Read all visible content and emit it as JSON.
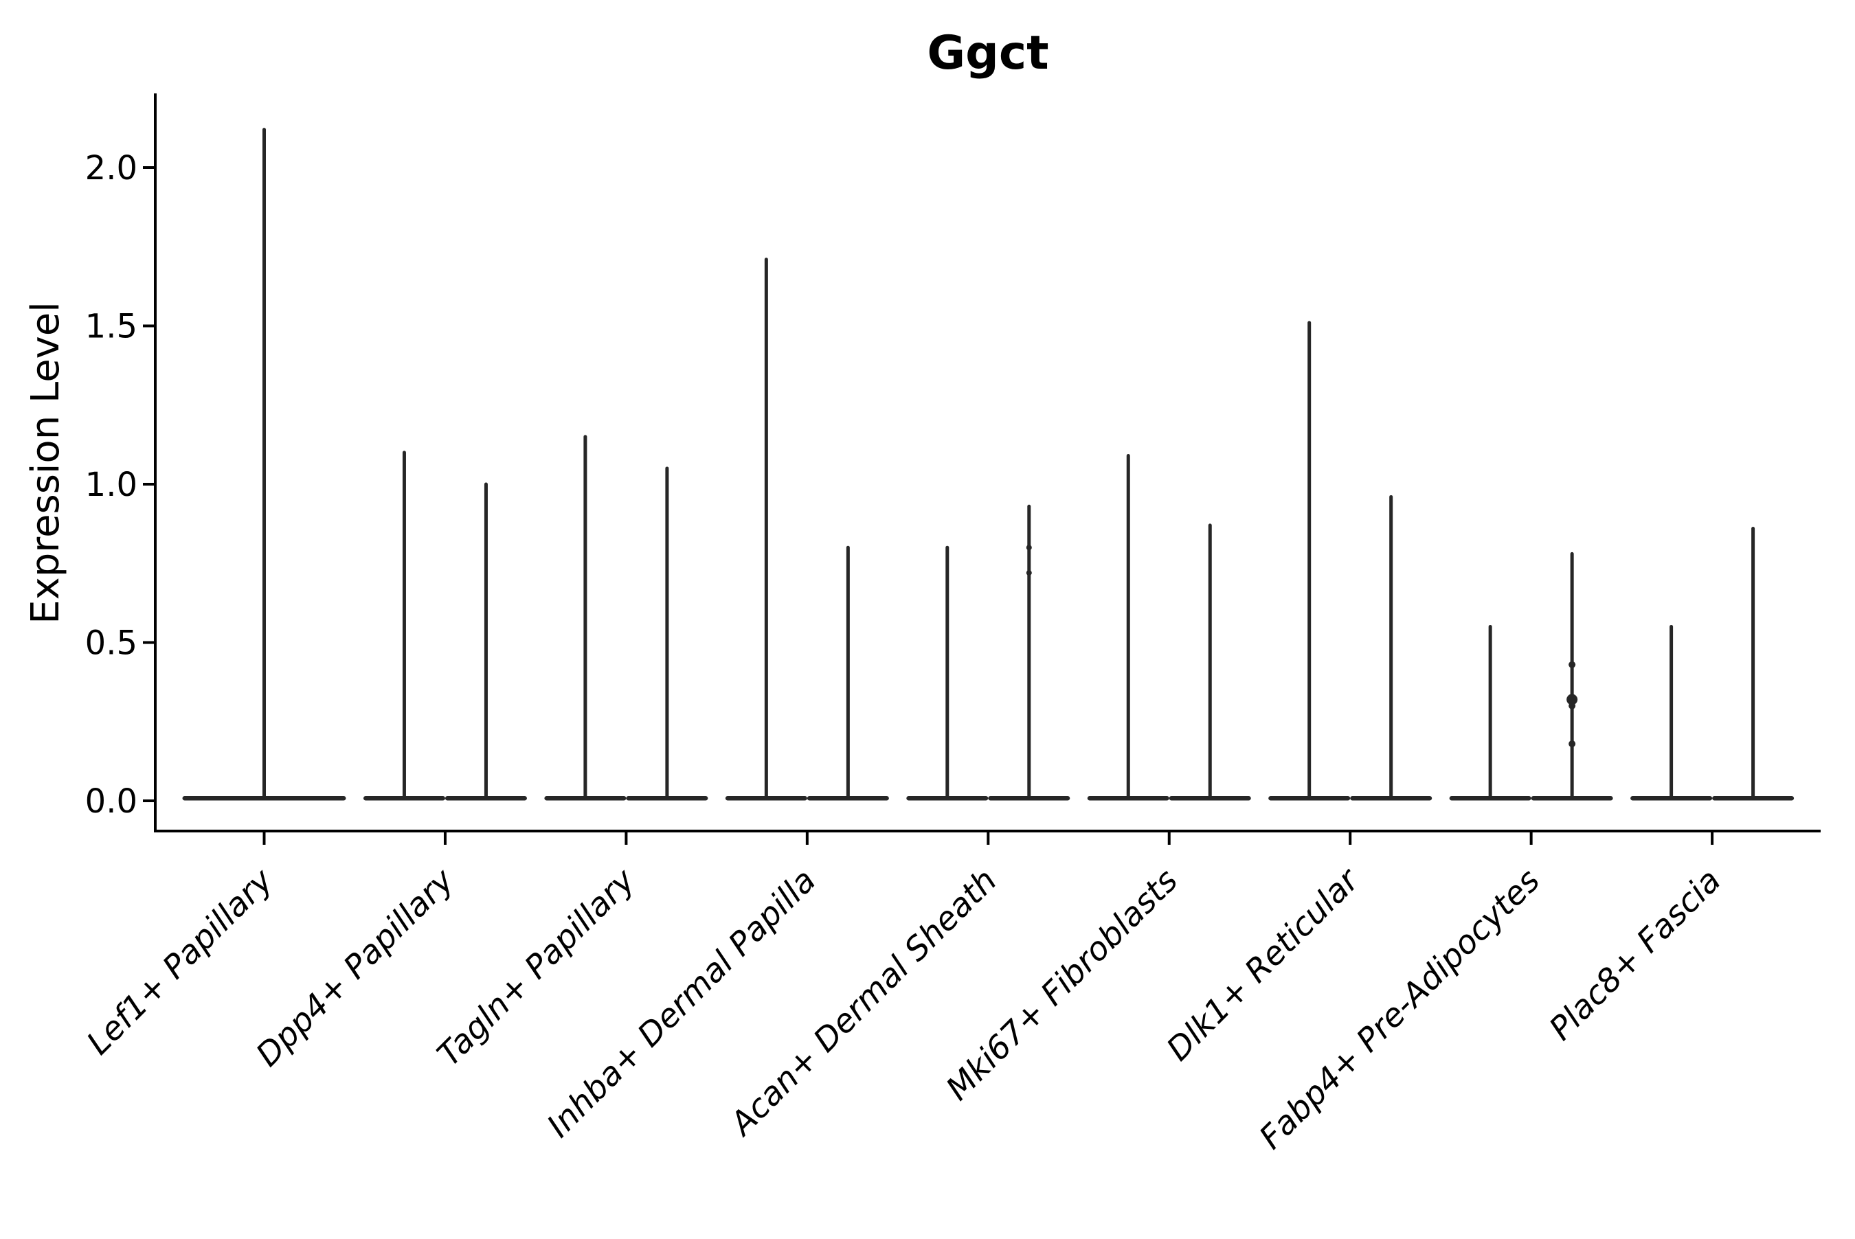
{
  "title": "Ggct",
  "axes": {
    "ylabel": "Expression Level",
    "ytick_labels": [
      "0.0",
      "0.5",
      "1.0",
      "1.5",
      "2.0"
    ],
    "ytick_values": [
      0.0,
      0.5,
      1.0,
      1.5,
      2.0
    ]
  },
  "chart_data": {
    "type": "violin",
    "title": "Ggct",
    "xlabel": "",
    "ylabel": "Expression Level",
    "ylim": [
      -0.09,
      2.23
    ],
    "yticks": [
      0.0,
      0.5,
      1.0,
      1.5,
      2.0
    ],
    "ytick_labels": [
      "0.0",
      "0.5",
      "1.0",
      "1.5",
      "2.0"
    ],
    "grid": false,
    "legend": "none",
    "ink_color": "#262626",
    "axis_color": "#000000",
    "categories": [
      "Lef1+ Papillary",
      "Dpp4+ Papillary",
      "Tagln+ Papillary",
      "Inhba+ Dermal Papilla",
      "Acan+ Dermal Sheath",
      "Mki67+ Fibroblasts",
      "Dlk1+ Reticular",
      "Fabp4+ Pre-Adipocytes",
      "Plac8+ Fascia"
    ],
    "series": [
      {
        "category": "Lef1+ Papillary",
        "violins": [
          {
            "baseline": 0.0,
            "max": 2.12,
            "points": []
          }
        ]
      },
      {
        "category": "Dpp4+ Papillary",
        "violins": [
          {
            "baseline": 0.0,
            "max": 1.1,
            "points": []
          },
          {
            "baseline": 0.0,
            "max": 1.0,
            "points": []
          }
        ]
      },
      {
        "category": "Tagln+ Papillary",
        "violins": [
          {
            "baseline": 0.0,
            "max": 1.15,
            "points": []
          },
          {
            "baseline": 0.0,
            "max": 1.05,
            "points": []
          }
        ]
      },
      {
        "category": "Inhba+ Dermal Papilla",
        "violins": [
          {
            "baseline": 0.0,
            "max": 1.71,
            "points": []
          },
          {
            "baseline": 0.0,
            "max": 0.8,
            "points": []
          }
        ]
      },
      {
        "category": "Acan+ Dermal Sheath",
        "violins": [
          {
            "baseline": 0.0,
            "max": 0.8,
            "points": []
          },
          {
            "baseline": 0.0,
            "max": 0.93,
            "points": [
              {
                "v": 0.8,
                "r": 4
              },
              {
                "v": 0.72,
                "r": 4
              }
            ]
          }
        ]
      },
      {
        "category": "Mki67+ Fibroblasts",
        "violins": [
          {
            "baseline": 0.0,
            "max": 1.09,
            "points": []
          },
          {
            "baseline": 0.0,
            "max": 0.87,
            "points": []
          }
        ]
      },
      {
        "category": "Dlk1+ Reticular",
        "violins": [
          {
            "baseline": 0.0,
            "max": 1.51,
            "points": []
          },
          {
            "baseline": 0.0,
            "max": 0.96,
            "points": []
          }
        ]
      },
      {
        "category": "Fabp4+ Pre-Adipocytes",
        "violins": [
          {
            "baseline": 0.0,
            "max": 0.55,
            "points": []
          },
          {
            "baseline": 0.0,
            "max": 0.78,
            "points": [
              {
                "v": 0.43,
                "r": 5
              },
              {
                "v": 0.32,
                "r": 8
              },
              {
                "v": 0.3,
                "r": 5
              },
              {
                "v": 0.18,
                "r": 5
              }
            ]
          }
        ]
      },
      {
        "category": "Plac8+ Fascia",
        "violins": [
          {
            "baseline": 0.0,
            "max": 0.55,
            "points": []
          },
          {
            "baseline": 0.0,
            "max": 0.86,
            "points": []
          }
        ]
      }
    ]
  }
}
